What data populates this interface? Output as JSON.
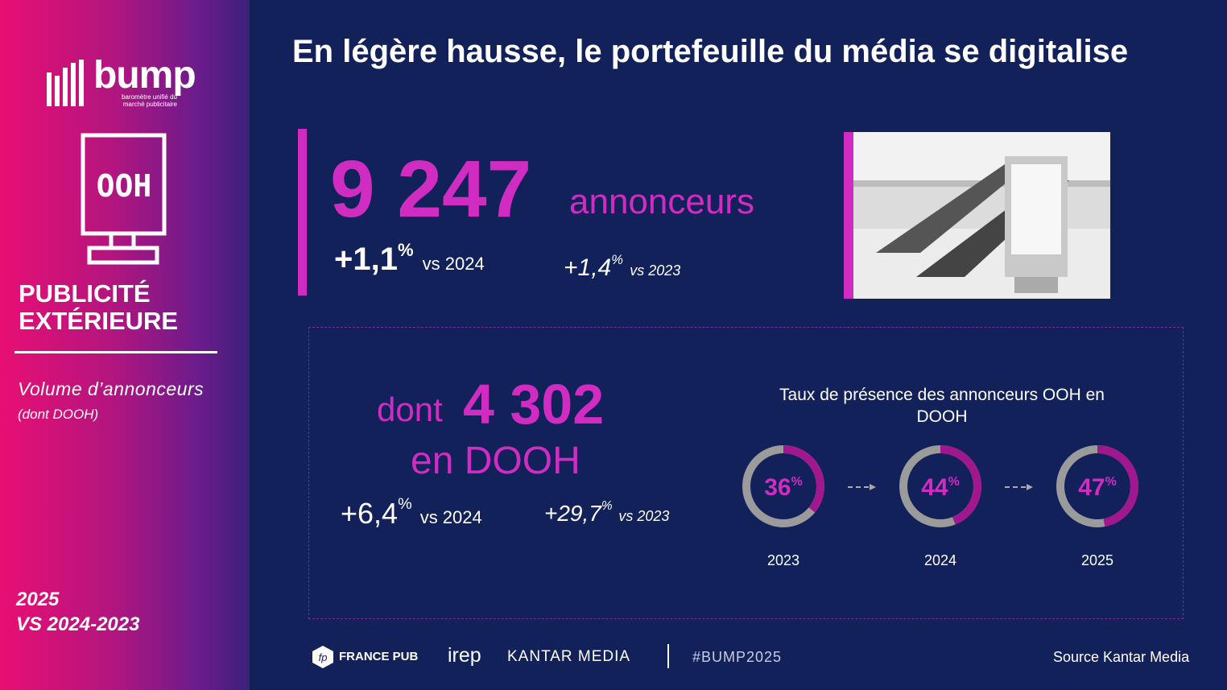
{
  "title": "En légère hausse, le portefeuille du média se digitalise",
  "sidebar": {
    "logo": "bump",
    "tagline": "baromètre unifié du marché publicitaire",
    "icon_label": "OOH",
    "section_title": [
      "PUBLICITÉ",
      "EXTÉRIEURE"
    ],
    "metric_label": "Volume d’annonceurs",
    "metric_sublabel": "(dont DOOH)",
    "period": [
      "2025",
      "VS 2024-2023"
    ]
  },
  "total": {
    "value": "9 247",
    "label": "annonceurs",
    "changes": [
      {
        "value": "+1,1",
        "unit": "%",
        "label": "vs 2024"
      },
      {
        "value": "+1,4",
        "unit": "%",
        "label": "vs 2023"
      }
    ]
  },
  "dooh": {
    "prefix": "dont",
    "value": "4 302",
    "label": "en DOOH",
    "changes": [
      {
        "value": "+6,4",
        "unit": "%",
        "label": "vs 2024"
      },
      {
        "value": "+29,7",
        "unit": "%",
        "label": "vs 2023"
      }
    ]
  },
  "presence": {
    "title": "Taux de présence des annonceurs OOH en DOOH",
    "donuts": [
      {
        "year": "2023",
        "value": 36,
        "unit": "%"
      },
      {
        "year": "2024",
        "value": 44,
        "unit": "%"
      },
      {
        "year": "2025",
        "value": 47,
        "unit": "%"
      }
    ]
  },
  "footer": {
    "partners": [
      "FRANCE PUB",
      "irep",
      "KANTAR MEDIA"
    ],
    "hashtag": "#BUMP2025",
    "source": "Source Kantar Media"
  }
}
